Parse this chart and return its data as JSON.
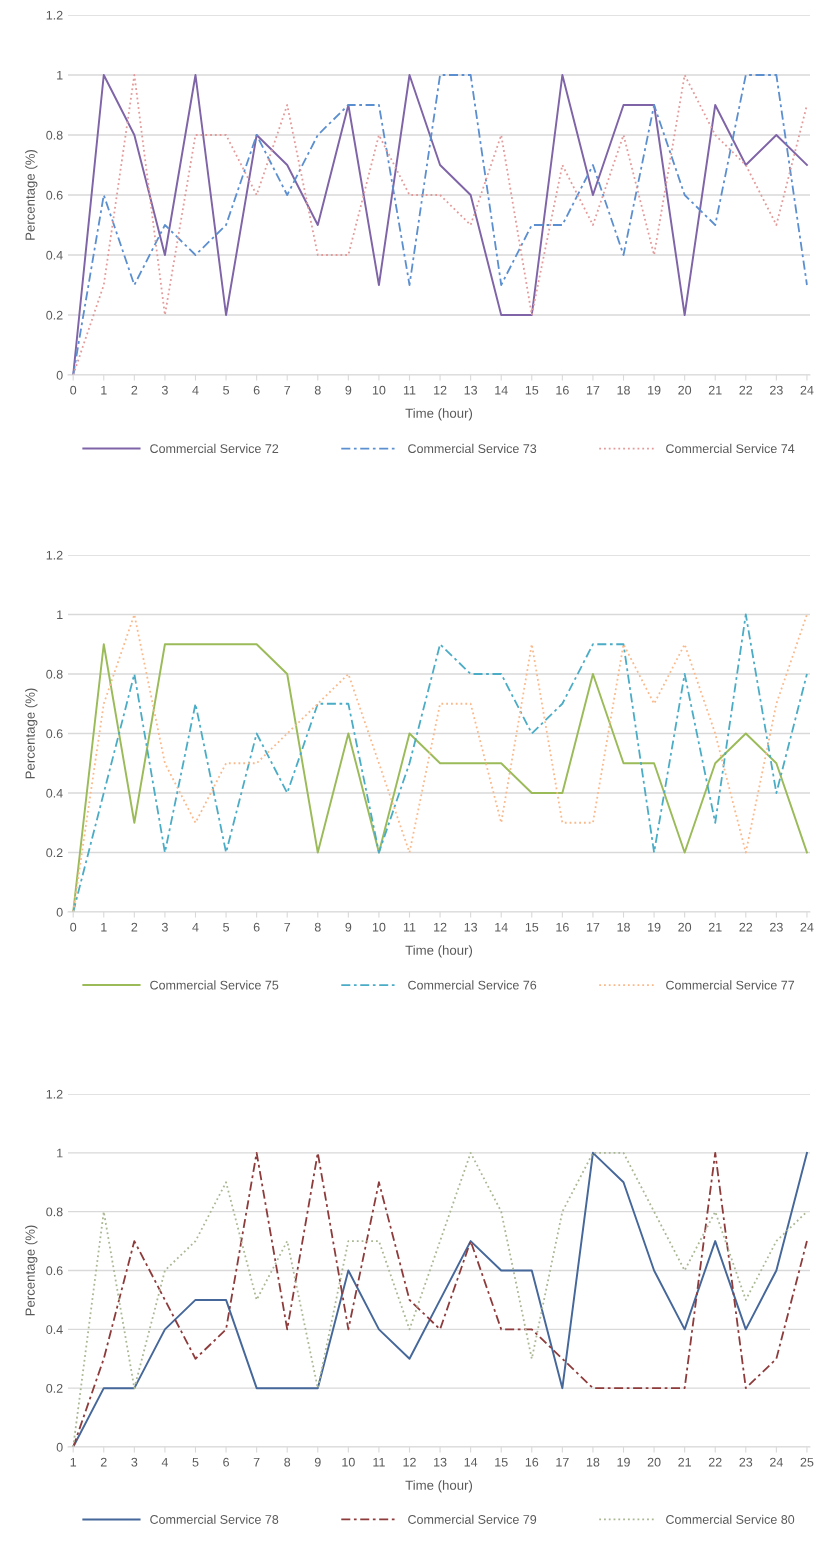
{
  "chart_data": [
    {
      "type": "line",
      "xlabel": "Time (hour)",
      "ylabel": "Percentage (%)",
      "ylim": [
        0,
        1.2
      ],
      "yticks": [
        0,
        0.2,
        0.4,
        0.6,
        0.8,
        1,
        1.2
      ],
      "grid": "y",
      "legend": "bottom",
      "categories": [
        "0",
        "1",
        "2",
        "3",
        "4",
        "5",
        "6",
        "7",
        "8",
        "9",
        "10",
        "11",
        "12",
        "13",
        "14",
        "15",
        "16",
        "17",
        "18",
        "19",
        "20",
        "21",
        "22",
        "23",
        "24"
      ],
      "series": [
        {
          "name": "Commercial Service 72",
          "color": "#7f64a8",
          "line_style": "solid",
          "values": [
            0,
            1,
            0.8,
            0.4,
            1,
            0.2,
            0.8,
            0.7,
            0.5,
            0.9,
            0.3,
            1,
            0.7,
            0.6,
            0.2,
            0.2,
            1,
            0.6,
            0.9,
            0.9,
            0.2,
            0.9,
            0.7,
            0.8,
            0.7
          ]
        },
        {
          "name": "Commercial Service 73",
          "color": "#5b8fcf",
          "line_style": "dashdot",
          "values": [
            0,
            0.6,
            0.3,
            0.5,
            0.4,
            0.5,
            0.8,
            0.6,
            0.8,
            0.9,
            0.9,
            0.3,
            1,
            1,
            0.3,
            0.5,
            0.5,
            0.7,
            0.4,
            0.9,
            0.6,
            0.5,
            1,
            1,
            0.3
          ]
        },
        {
          "name": "Commercial Service 74",
          "color": "#e39a9a",
          "line_style": "dotted",
          "values": [
            0,
            0.3,
            1,
            0.2,
            0.8,
            0.8,
            0.6,
            0.9,
            0.4,
            0.4,
            0.8,
            0.6,
            0.6,
            0.5,
            0.8,
            0.2,
            0.7,
            0.5,
            0.8,
            0.4,
            1,
            0.8,
            0.7,
            0.5,
            0.9
          ]
        }
      ]
    },
    {
      "type": "line",
      "xlabel": "Time (hour)",
      "ylabel": "Percentage (%)",
      "ylim": [
        0,
        1.2
      ],
      "yticks": [
        0,
        0.2,
        0.4,
        0.6,
        0.8,
        1,
        1.2
      ],
      "grid": "y",
      "legend": "bottom",
      "categories": [
        "0",
        "1",
        "2",
        "3",
        "4",
        "5",
        "6",
        "7",
        "8",
        "9",
        "10",
        "11",
        "12",
        "13",
        "14",
        "15",
        "16",
        "17",
        "18",
        "19",
        "20",
        "21",
        "22",
        "23",
        "24"
      ],
      "series": [
        {
          "name": "Commercial Service 75",
          "color": "#9bbb59",
          "line_style": "solid",
          "values": [
            0,
            0.9,
            0.3,
            0.9,
            0.9,
            0.9,
            0.9,
            0.8,
            0.2,
            0.6,
            0.2,
            0.6,
            0.5,
            0.5,
            0.5,
            0.4,
            0.4,
            0.8,
            0.5,
            0.5,
            0.2,
            0.5,
            0.6,
            0.5,
            0.2
          ]
        },
        {
          "name": "Commercial Service 76",
          "color": "#4bacc6",
          "line_style": "dashdot",
          "values": [
            0,
            0.4,
            0.8,
            0.2,
            0.7,
            0.2,
            0.6,
            0.4,
            0.7,
            0.7,
            0.2,
            0.5,
            0.9,
            0.8,
            0.8,
            0.6,
            0.7,
            0.9,
            0.9,
            0.2,
            0.8,
            0.3,
            1,
            0.4,
            0.8
          ]
        },
        {
          "name": "Commercial Service 77",
          "color": "#f9b98a",
          "line_style": "dotted",
          "values": [
            0,
            0.7,
            1,
            0.5,
            0.3,
            0.5,
            0.5,
            0.6,
            0.7,
            0.8,
            0.5,
            0.2,
            0.7,
            0.7,
            0.3,
            0.9,
            0.3,
            0.3,
            0.9,
            0.7,
            0.9,
            0.6,
            0.2,
            0.7,
            1
          ]
        }
      ]
    },
    {
      "type": "line",
      "xlabel": "Time (hour)",
      "ylabel": "Percentage (%)",
      "ylim": [
        0,
        1.2
      ],
      "yticks": [
        0,
        0.2,
        0.4,
        0.6,
        0.8,
        1,
        1.2
      ],
      "grid": "y",
      "legend": "bottom",
      "categories": [
        "1",
        "2",
        "3",
        "4",
        "5",
        "6",
        "7",
        "8",
        "9",
        "10",
        "11",
        "12",
        "13",
        "14",
        "15",
        "16",
        "17",
        "18",
        "19",
        "20",
        "21",
        "22",
        "23",
        "24",
        "25"
      ],
      "series": [
        {
          "name": "Commercial Service 78",
          "color": "#45679a",
          "line_style": "solid",
          "values": [
            0,
            0.2,
            0.2,
            0.4,
            0.5,
            0.5,
            0.2,
            0.2,
            0.2,
            0.6,
            0.4,
            0.3,
            0.5,
            0.7,
            0.6,
            0.6,
            0.2,
            1,
            0.9,
            0.6,
            0.4,
            0.7,
            0.4,
            0.6,
            1
          ]
        },
        {
          "name": "Commercial Service 79",
          "color": "#8e3b3b",
          "line_style": "dashdot",
          "values": [
            0,
            0.3,
            0.7,
            0.5,
            0.3,
            0.4,
            1,
            0.4,
            1,
            0.4,
            0.9,
            0.5,
            0.4,
            0.7,
            0.4,
            0.4,
            0.3,
            0.2,
            0.2,
            0.2,
            0.2,
            1,
            0.2,
            0.3,
            0.7
          ]
        },
        {
          "name": "Commercial Service 80",
          "color": "#a9b793",
          "line_style": "dotted",
          "values": [
            0,
            0.8,
            0.2,
            0.6,
            0.7,
            0.9,
            0.5,
            0.7,
            0.2,
            0.7,
            0.7,
            0.4,
            0.7,
            1,
            0.8,
            0.3,
            0.8,
            1,
            1,
            0.8,
            0.6,
            0.8,
            0.5,
            0.7,
            0.8
          ]
        }
      ]
    }
  ]
}
